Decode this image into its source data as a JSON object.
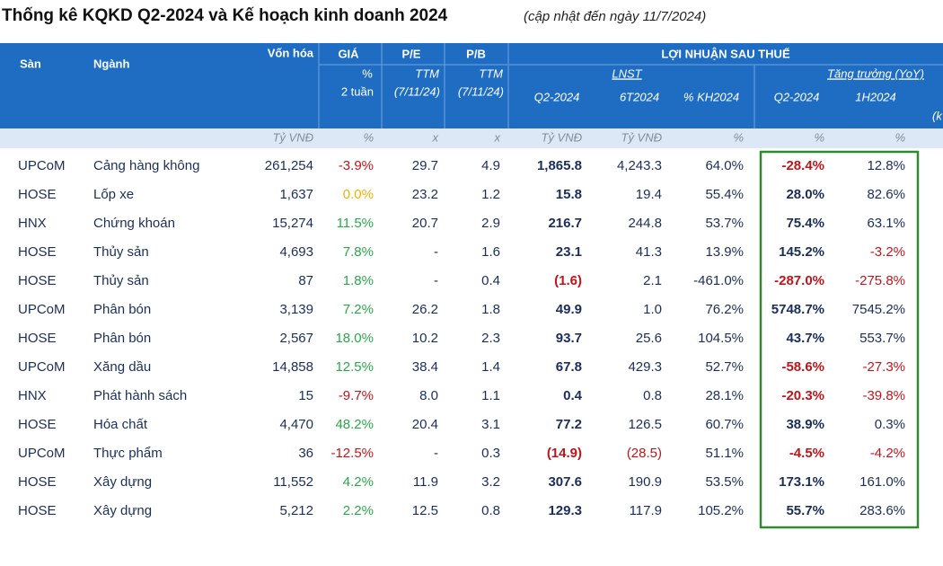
{
  "title": "Thống kê KQKD Q2-2024 và Kế hoạch kinh doanh 2024",
  "subtitle": "(cập nhật đến ngày 11/7/2024)",
  "header": {
    "san": "Sàn",
    "nganh": "Ngành",
    "von_hoa": "Vốn hóa",
    "gia": "GIÁ",
    "pe": "P/E",
    "pb": "P/B",
    "lnst_group": "LỢI NHUẬN SAU THUẾ",
    "gia_sub1": "%",
    "gia_sub2": "2 tuần",
    "pe_sub1": "TTM",
    "pe_sub2": "(7/11/24)",
    "pb_sub1": "TTM",
    "pb_sub2": "(7/11/24)",
    "lnst": "LNST",
    "growth": "Tăng trưởng (YoY)",
    "q2": "Q2-2024",
    "t6": "6T2024",
    "kh": "% KH2024",
    "g_q2": "Q2-2024",
    "g_1h": "1H2024",
    "cut": "(k"
  },
  "units": [
    "Tỷ VNĐ",
    "%",
    "x",
    "x",
    "Tỷ VNĐ",
    "Tỷ VNĐ",
    "%",
    "%",
    "%"
  ],
  "rows": [
    [
      "UPCoM",
      "Cảng hàng không",
      "261,254",
      "-3.9%",
      "29.7",
      "4.9",
      "1,865.8",
      "4,243.3",
      "64.0%",
      "-28.4%",
      "12.8%"
    ],
    [
      "HOSE",
      "Lốp xe",
      "1,637",
      "0.0%",
      "23.2",
      "1.2",
      "15.8",
      "19.4",
      "55.4%",
      "28.0%",
      "82.6%"
    ],
    [
      "HNX",
      "Chứng khoán",
      "15,274",
      "11.5%",
      "20.7",
      "2.9",
      "216.7",
      "244.8",
      "53.7%",
      "75.4%",
      "63.1%"
    ],
    [
      "HOSE",
      "Thủy sản",
      "4,693",
      "7.8%",
      "-",
      "1.6",
      "23.1",
      "41.3",
      "13.9%",
      "145.2%",
      "-3.2%"
    ],
    [
      "HOSE",
      "Thủy sản",
      "87",
      "1.8%",
      "-",
      "0.4",
      "(1.6)",
      "2.1",
      "-461.0%",
      "-287.0%",
      "-275.8%"
    ],
    [
      "UPCoM",
      "Phân bón",
      "3,139",
      "7.2%",
      "26.2",
      "1.8",
      "49.9",
      "1.0",
      "76.2%",
      "5748.7%",
      "7545.2%"
    ],
    [
      "HOSE",
      "Phân bón",
      "2,567",
      "18.0%",
      "10.2",
      "2.3",
      "93.7",
      "25.6",
      "104.5%",
      "43.7%",
      "553.7%"
    ],
    [
      "UPCoM",
      "Xăng dầu",
      "14,858",
      "12.5%",
      "38.4",
      "1.4",
      "67.8",
      "429.3",
      "52.7%",
      "-58.6%",
      "-27.3%"
    ],
    [
      "HNX",
      "Phát hành sách",
      "15",
      "-9.7%",
      "8.0",
      "1.1",
      "0.4",
      "0.8",
      "28.1%",
      "-20.3%",
      "-39.8%"
    ],
    [
      "HOSE",
      "Hóa chất",
      "4,470",
      "48.2%",
      "20.4",
      "3.1",
      "77.2",
      "126.5",
      "60.7%",
      "38.9%",
      "0.3%"
    ],
    [
      "UPCoM",
      "Thực phẩm",
      "36",
      "-12.5%",
      "-",
      "0.3",
      "(14.9)",
      "(28.5)",
      "51.1%",
      "-4.5%",
      "-4.2%"
    ],
    [
      "HOSE",
      "Xây dựng",
      "11,552",
      "4.2%",
      "11.9",
      "3.2",
      "307.6",
      "190.9",
      "53.5%",
      "173.1%",
      "161.0%"
    ],
    [
      "HOSE",
      "Xây dựng",
      "5,212",
      "2.2%",
      "12.5",
      "0.8",
      "129.3",
      "117.9",
      "105.2%",
      "55.7%",
      "283.6%"
    ]
  ]
}
